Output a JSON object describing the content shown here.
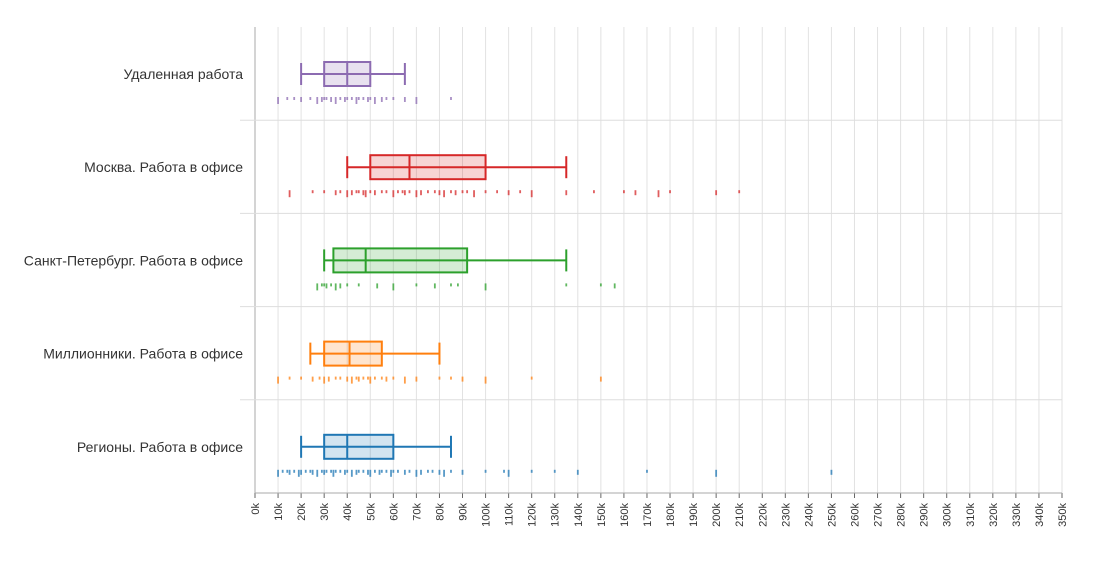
{
  "chart_data": {
    "type": "boxplot",
    "orientation": "horizontal",
    "x_ticks": [
      "0k",
      "10k",
      "20k",
      "30k",
      "40k",
      "50k",
      "60k",
      "70k",
      "80k",
      "90k",
      "100k",
      "110k",
      "120k",
      "130k",
      "140k",
      "150k",
      "160k",
      "170k",
      "180k",
      "190k",
      "200k",
      "210k",
      "220k",
      "230k",
      "240k",
      "250k",
      "260k",
      "270k",
      "280k",
      "290k",
      "300k",
      "310k",
      "320k",
      "330k",
      "340k",
      "350k"
    ],
    "xlim": [
      0,
      350
    ],
    "grid": true,
    "legend": "none",
    "series": [
      {
        "name": "Удаленная работа",
        "color": "#8c6bb1",
        "whisker_low": 20,
        "q1": 30,
        "median": 40,
        "q3": 50,
        "whisker_high": 65,
        "points": [
          10,
          14,
          17,
          20,
          24,
          27,
          29,
          30,
          31,
          33,
          35,
          37,
          39,
          40,
          42,
          44,
          45,
          47,
          49,
          50,
          52,
          55,
          57,
          60,
          65,
          70,
          85
        ]
      },
      {
        "name": "Москва. Работа в офисе",
        "color": "#d62728",
        "whisker_low": 40,
        "q1": 50,
        "median": 67,
        "q3": 100,
        "whisker_high": 135,
        "points": [
          15,
          25,
          30,
          35,
          37,
          40,
          42,
          44,
          45,
          47,
          48,
          50,
          52,
          55,
          57,
          60,
          62,
          64,
          65,
          67,
          70,
          72,
          75,
          78,
          80,
          82,
          85,
          87,
          90,
          92,
          95,
          100,
          105,
          110,
          115,
          120,
          135,
          147,
          160,
          165,
          175,
          180,
          200,
          210
        ]
      },
      {
        "name": "Санкт-Петербург. Работа в офисе",
        "color": "#2ca02c",
        "whisker_low": 30,
        "q1": 34,
        "median": 48,
        "q3": 92,
        "whisker_high": 135,
        "points": [
          27,
          29,
          30,
          31,
          33,
          35,
          37,
          40,
          45,
          53,
          60,
          70,
          78,
          85,
          88,
          100,
          135,
          150,
          156
        ]
      },
      {
        "name": "Миллионники. Работа в офисе",
        "color": "#ff7f0e",
        "whisker_low": 24,
        "q1": 30,
        "median": 41,
        "q3": 55,
        "whisker_high": 80,
        "points": [
          10,
          15,
          20,
          25,
          28,
          30,
          32,
          35,
          37,
          40,
          42,
          44,
          45,
          47,
          49,
          50,
          52,
          55,
          57,
          60,
          65,
          70,
          80,
          85,
          90,
          100,
          120,
          150
        ]
      },
      {
        "name": "Регионы. Работа в офисе",
        "color": "#1f77b4",
        "whisker_low": 20,
        "q1": 30,
        "median": 40,
        "q3": 60,
        "whisker_high": 85,
        "points": [
          10,
          12,
          14,
          15,
          17,
          19,
          20,
          22,
          24,
          25,
          27,
          29,
          30,
          31,
          33,
          34,
          35,
          37,
          39,
          40,
          42,
          44,
          45,
          47,
          49,
          50,
          52,
          54,
          55,
          57,
          59,
          60,
          62,
          65,
          67,
          70,
          72,
          75,
          77,
          80,
          82,
          85,
          90,
          100,
          108,
          110,
          120,
          130,
          140,
          170,
          200,
          250
        ]
      }
    ]
  }
}
